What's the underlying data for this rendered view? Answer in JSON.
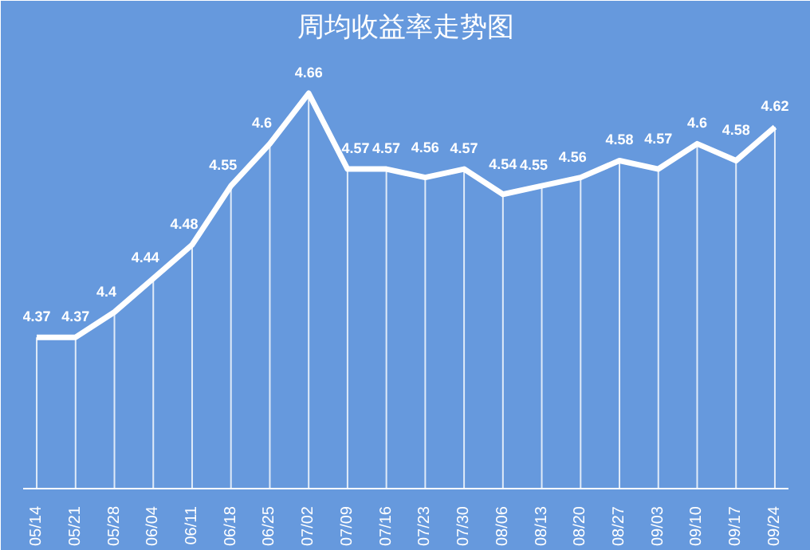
{
  "chart_data": {
    "type": "line",
    "title": "周均收益率走势图",
    "categories": [
      "05/14",
      "05/21",
      "05/28",
      "06/04",
      "06/11",
      "06/18",
      "06/25",
      "07/02",
      "07/09",
      "07/16",
      "07/23",
      "07/30",
      "08/06",
      "08/13",
      "08/20",
      "08/27",
      "09/03",
      "09/10",
      "09/17",
      "09/24"
    ],
    "series": [
      {
        "color": "#ffffff",
        "values": [
          4.37,
          4.37,
          4.4,
          4.44,
          4.48,
          4.55,
          4.6,
          4.66,
          4.57,
          4.57,
          4.56,
          4.57,
          4.54,
          4.55,
          4.56,
          4.58,
          4.57,
          4.6,
          4.58,
          4.62
        ]
      }
    ],
    "data_labels": true,
    "grid": "x",
    "marker": "none",
    "line_style": "solid"
  }
}
